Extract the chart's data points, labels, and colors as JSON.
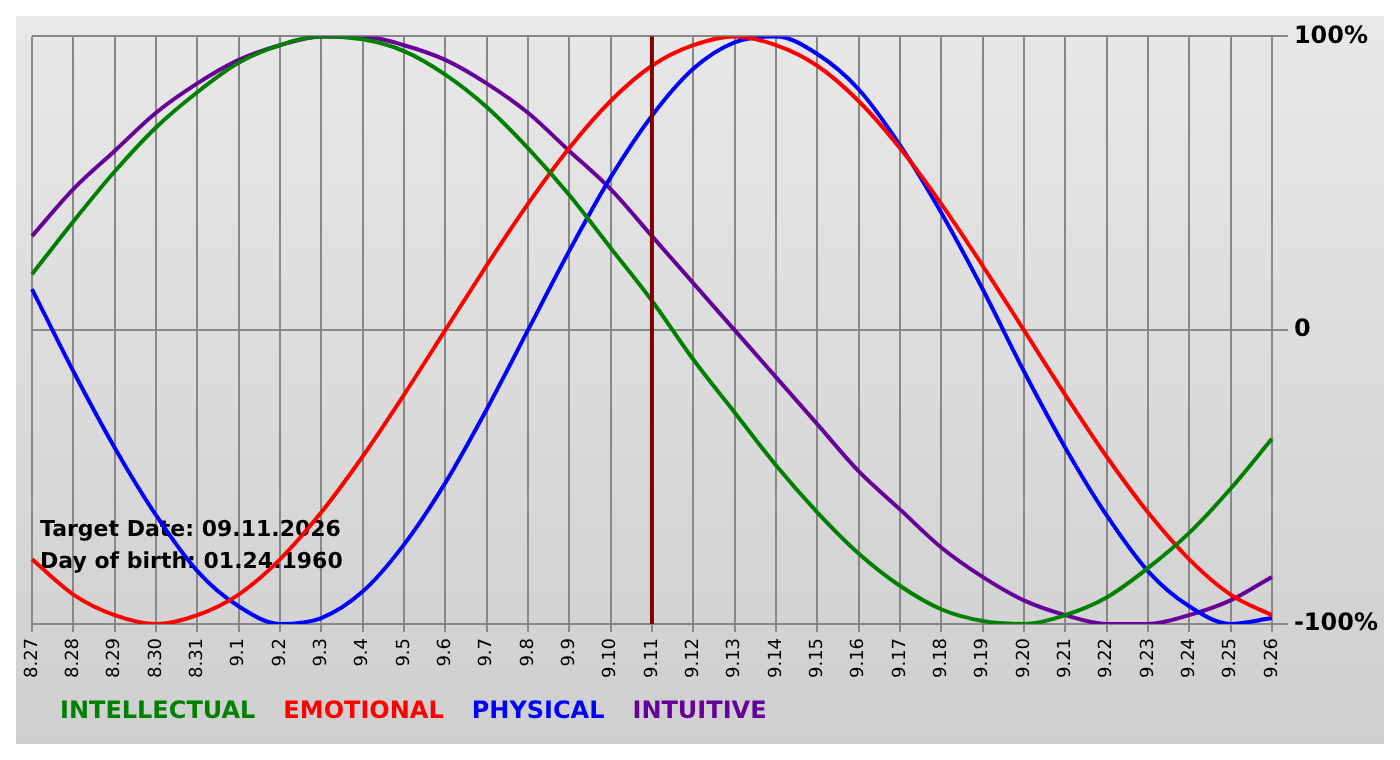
{
  "chart_data": {
    "type": "line",
    "categories": [
      "8.27",
      "8.28",
      "8.29",
      "8.30",
      "8.31",
      "9.1",
      "9.2",
      "9.3",
      "9.4",
      "9.5",
      "9.6",
      "9.7",
      "9.8",
      "9.9",
      "9.10",
      "9.11",
      "9.12",
      "9.13",
      "9.14",
      "9.15",
      "9.16",
      "9.17",
      "9.18",
      "9.19",
      "9.20",
      "9.21",
      "9.22",
      "9.23",
      "9.24",
      "9.25",
      "9.26"
    ],
    "series": [
      {
        "name": "INTELLECTUAL",
        "color": "#008000",
        "values": [
          19,
          37,
          54,
          69,
          81,
          91,
          97,
          100,
          99,
          95,
          87,
          76,
          62,
          46,
          28,
          10,
          -10,
          -28,
          -46,
          -62,
          -76,
          -87,
          -95,
          -99,
          -100,
          -97,
          -91,
          -81,
          -69,
          -54,
          -37
        ]
      },
      {
        "name": "EMOTIONAL",
        "color": "#ff0000",
        "values": [
          -78,
          -90,
          -97,
          -100,
          -97,
          -90,
          -78,
          -62,
          -43,
          -22,
          0,
          22,
          43,
          62,
          78,
          90,
          97,
          100,
          97,
          90,
          78,
          62,
          43,
          22,
          0,
          -22,
          -43,
          -62,
          -78,
          -90,
          -97
        ]
      },
      {
        "name": "PHYSICAL",
        "color": "#0000ff",
        "values": [
          14,
          -14,
          -40,
          -63,
          -82,
          -94,
          -100,
          -98,
          -89,
          -73,
          -52,
          -27,
          0,
          27,
          52,
          73,
          89,
          98,
          100,
          94,
          82,
          63,
          40,
          14,
          -14,
          -40,
          -63,
          -82,
          -94,
          -100,
          -98
        ]
      },
      {
        "name": "INTUITIVE",
        "color": "#660099",
        "values": [
          32,
          48,
          61,
          74,
          84,
          92,
          97,
          100,
          100,
          97,
          92,
          84,
          74,
          61,
          48,
          32,
          16,
          0,
          -16,
          -32,
          -48,
          -61,
          -74,
          -84,
          -92,
          -97,
          -100,
          -100,
          -97,
          -92,
          -84
        ]
      }
    ],
    "ylim": [
      -100,
      100
    ],
    "yticks": [
      {
        "value": -100,
        "label": "-100%"
      },
      0,
      {
        "value": 100,
        "label": "100%"
      }
    ],
    "grid": true,
    "legend": "bottom left",
    "marker": "none",
    "line_style": "solid",
    "ref_lines": [
      {
        "axis": "x",
        "value": "9.11",
        "color": "#800000"
      }
    ],
    "annotations": [
      "Target Date: 09.11.2026",
      "Day of birth: 01.24.1960"
    ]
  }
}
